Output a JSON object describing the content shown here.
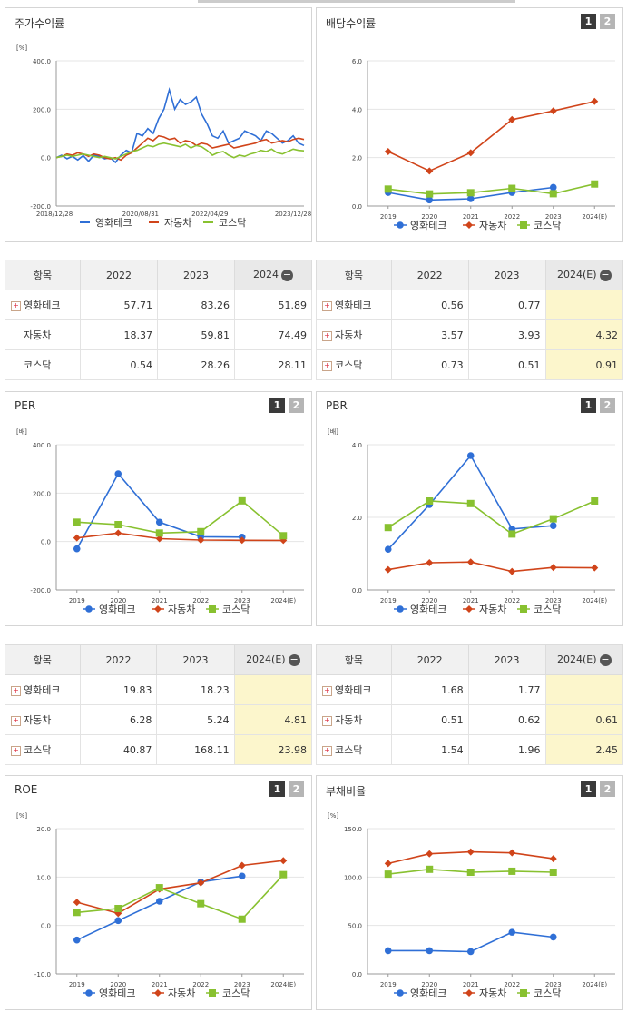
{
  "colors": {
    "blue": "#2f6fd6",
    "red": "#d0441a",
    "green": "#88c130",
    "grid": "#e5e5e5",
    "axis": "#999"
  },
  "legend": [
    "영화테크",
    "자동차",
    "코스닥"
  ],
  "tabs": [
    "1",
    "2"
  ],
  "panels": {
    "stock": {
      "title": "주가수익률"
    },
    "dividend": {
      "title": "배당수익률"
    },
    "per": {
      "title": "PER"
    },
    "pbr": {
      "title": "PBR"
    },
    "roe": {
      "title": "ROE"
    },
    "debt": {
      "title": "부채비율"
    }
  },
  "tables": {
    "stock": {
      "header": [
        "항목",
        "2022",
        "2023",
        "2024"
      ],
      "rows": [
        {
          "name": "영화테크",
          "v": [
            "57.71",
            "83.26",
            "51.89"
          ],
          "plus": true
        },
        {
          "name": "자동차",
          "v": [
            "18.37",
            "59.81",
            "74.49"
          ],
          "plus": false
        },
        {
          "name": "코스닥",
          "v": [
            "0.54",
            "28.26",
            "28.11"
          ],
          "plus": false
        }
      ]
    },
    "dividend": {
      "header": [
        "항목",
        "2022",
        "2023",
        "2024(E)"
      ],
      "rows": [
        {
          "name": "영화테크",
          "v": [
            "0.56",
            "0.77",
            ""
          ],
          "plus": true
        },
        {
          "name": "자동차",
          "v": [
            "3.57",
            "3.93",
            "4.32"
          ],
          "plus": true
        },
        {
          "name": "코스닥",
          "v": [
            "0.73",
            "0.51",
            "0.91"
          ],
          "plus": true
        }
      ]
    },
    "per": {
      "header": [
        "항목",
        "2022",
        "2023",
        "2024(E)"
      ],
      "rows": [
        {
          "name": "영화테크",
          "v": [
            "19.83",
            "18.23",
            ""
          ],
          "plus": true
        },
        {
          "name": "자동차",
          "v": [
            "6.28",
            "5.24",
            "4.81"
          ],
          "plus": true
        },
        {
          "name": "코스닥",
          "v": [
            "40.87",
            "168.11",
            "23.98"
          ],
          "plus": true
        }
      ]
    },
    "pbr": {
      "header": [
        "항목",
        "2022",
        "2023",
        "2024(E)"
      ],
      "rows": [
        {
          "name": "영화테크",
          "v": [
            "1.68",
            "1.77",
            ""
          ],
          "plus": true
        },
        {
          "name": "자동차",
          "v": [
            "0.51",
            "0.62",
            "0.61"
          ],
          "plus": true
        },
        {
          "name": "코스닥",
          "v": [
            "1.54",
            "1.96",
            "2.45"
          ],
          "plus": true
        }
      ]
    }
  },
  "chart_data": [
    {
      "id": "stock",
      "type": "line",
      "unit": "[%]",
      "ylim": [
        -200,
        400
      ],
      "yticks": [
        "400.0",
        "200.0",
        "0.0",
        "-200.0"
      ],
      "xlabels": [
        "2018/12/28",
        "2020/08/31",
        "2022/04/29",
        "2023/12/28"
      ],
      "series": [
        {
          "name": "영화테크",
          "values": [
            0,
            10,
            -5,
            5,
            -10,
            8,
            -15,
            10,
            5,
            -5,
            0,
            -20,
            10,
            30,
            20,
            100,
            90,
            120,
            100,
            160,
            200,
            280,
            200,
            240,
            220,
            230,
            250,
            180,
            140,
            90,
            80,
            110,
            60,
            70,
            80,
            110,
            100,
            90,
            70,
            110,
            100,
            80,
            60,
            70,
            90,
            60,
            50
          ]
        },
        {
          "name": "자동차",
          "values": [
            0,
            5,
            15,
            10,
            20,
            15,
            5,
            15,
            10,
            0,
            -5,
            0,
            -10,
            10,
            20,
            40,
            60,
            80,
            70,
            90,
            85,
            75,
            80,
            60,
            70,
            65,
            50,
            60,
            55,
            40,
            45,
            50,
            55,
            40,
            45,
            50,
            55,
            60,
            70,
            75,
            60,
            65,
            70,
            65,
            75,
            80,
            75
          ]
        },
        {
          "name": "코스닥",
          "values": [
            0,
            5,
            10,
            5,
            10,
            15,
            10,
            5,
            0,
            5,
            0,
            -5,
            5,
            15,
            25,
            30,
            40,
            50,
            45,
            55,
            60,
            55,
            50,
            45,
            55,
            40,
            50,
            45,
            30,
            10,
            20,
            25,
            10,
            0,
            10,
            5,
            15,
            20,
            30,
            25,
            35,
            20,
            15,
            25,
            35,
            30,
            28
          ]
        }
      ]
    },
    {
      "id": "dividend",
      "type": "line",
      "unit": "",
      "ylim": [
        0,
        6
      ],
      "yticks": [
        "6.0",
        "4.0",
        "2.0",
        "0.0"
      ],
      "xlabels": [
        "2019",
        "2020",
        "2021",
        "2022",
        "2023",
        "2024(E)"
      ],
      "series": [
        {
          "name": "영화테크",
          "values": [
            0.56,
            0.25,
            0.3,
            0.56,
            0.77,
            null
          ]
        },
        {
          "name": "자동차",
          "values": [
            2.25,
            1.45,
            2.2,
            3.57,
            3.93,
            4.32
          ]
        },
        {
          "name": "코스닥",
          "values": [
            0.7,
            0.5,
            0.55,
            0.73,
            0.51,
            0.91
          ]
        }
      ]
    },
    {
      "id": "per",
      "type": "line",
      "unit": "[배]",
      "ylim": [
        -200,
        400
      ],
      "yticks": [
        "400.0",
        "200.0",
        "0.0",
        "-200.0"
      ],
      "xlabels": [
        "2019",
        "2020",
        "2021",
        "2022",
        "2023",
        "2024(E)"
      ],
      "series": [
        {
          "name": "영화테크",
          "values": [
            -30,
            280,
            80,
            19.83,
            18.23,
            null
          ]
        },
        {
          "name": "자동차",
          "values": [
            15,
            35,
            12,
            6.28,
            5.24,
            4.81
          ]
        },
        {
          "name": "코스닥",
          "values": [
            80,
            70,
            35,
            40.87,
            168.11,
            23.98
          ]
        }
      ]
    },
    {
      "id": "pbr",
      "type": "line",
      "unit": "[배]",
      "ylim": [
        0,
        4
      ],
      "yticks": [
        "4.0",
        "2.0",
        "0.0"
      ],
      "xlabels": [
        "2019",
        "2020",
        "2021",
        "2022",
        "2023",
        "2024(E)"
      ],
      "series": [
        {
          "name": "영화테크",
          "values": [
            1.12,
            2.35,
            3.7,
            1.68,
            1.77,
            null
          ]
        },
        {
          "name": "자동차",
          "values": [
            0.56,
            0.75,
            0.77,
            0.51,
            0.62,
            0.61
          ]
        },
        {
          "name": "코스닥",
          "values": [
            1.72,
            2.45,
            2.38,
            1.54,
            1.96,
            2.45
          ]
        }
      ]
    },
    {
      "id": "roe",
      "type": "line",
      "unit": "[%]",
      "ylim": [
        -10,
        20
      ],
      "yticks": [
        "20.0",
        "10.0",
        "0.0",
        "-10.0"
      ],
      "xlabels": [
        "2019",
        "2020",
        "2021",
        "2022",
        "2023",
        "2024(E)"
      ],
      "series": [
        {
          "name": "영화테크",
          "values": [
            -3.0,
            1.0,
            5.0,
            9.0,
            10.2,
            null
          ]
        },
        {
          "name": "자동차",
          "values": [
            4.8,
            2.5,
            7.5,
            8.8,
            12.4,
            13.4
          ]
        },
        {
          "name": "코스닥",
          "values": [
            2.7,
            3.5,
            7.8,
            4.5,
            1.3,
            10.5
          ]
        }
      ]
    },
    {
      "id": "debt",
      "type": "line",
      "unit": "[%]",
      "ylim": [
        0,
        150
      ],
      "yticks": [
        "150.0",
        "100.0",
        "50.0",
        "0.0"
      ],
      "xlabels": [
        "2019",
        "2020",
        "2021",
        "2022",
        "2023",
        "2024(E)"
      ],
      "series": [
        {
          "name": "영화테크",
          "values": [
            24,
            24,
            23,
            43,
            38,
            null
          ]
        },
        {
          "name": "자동차",
          "values": [
            114,
            124,
            126,
            125,
            119,
            null
          ]
        },
        {
          "name": "코스닥",
          "values": [
            103,
            108,
            105,
            106,
            105,
            null
          ]
        }
      ]
    }
  ]
}
